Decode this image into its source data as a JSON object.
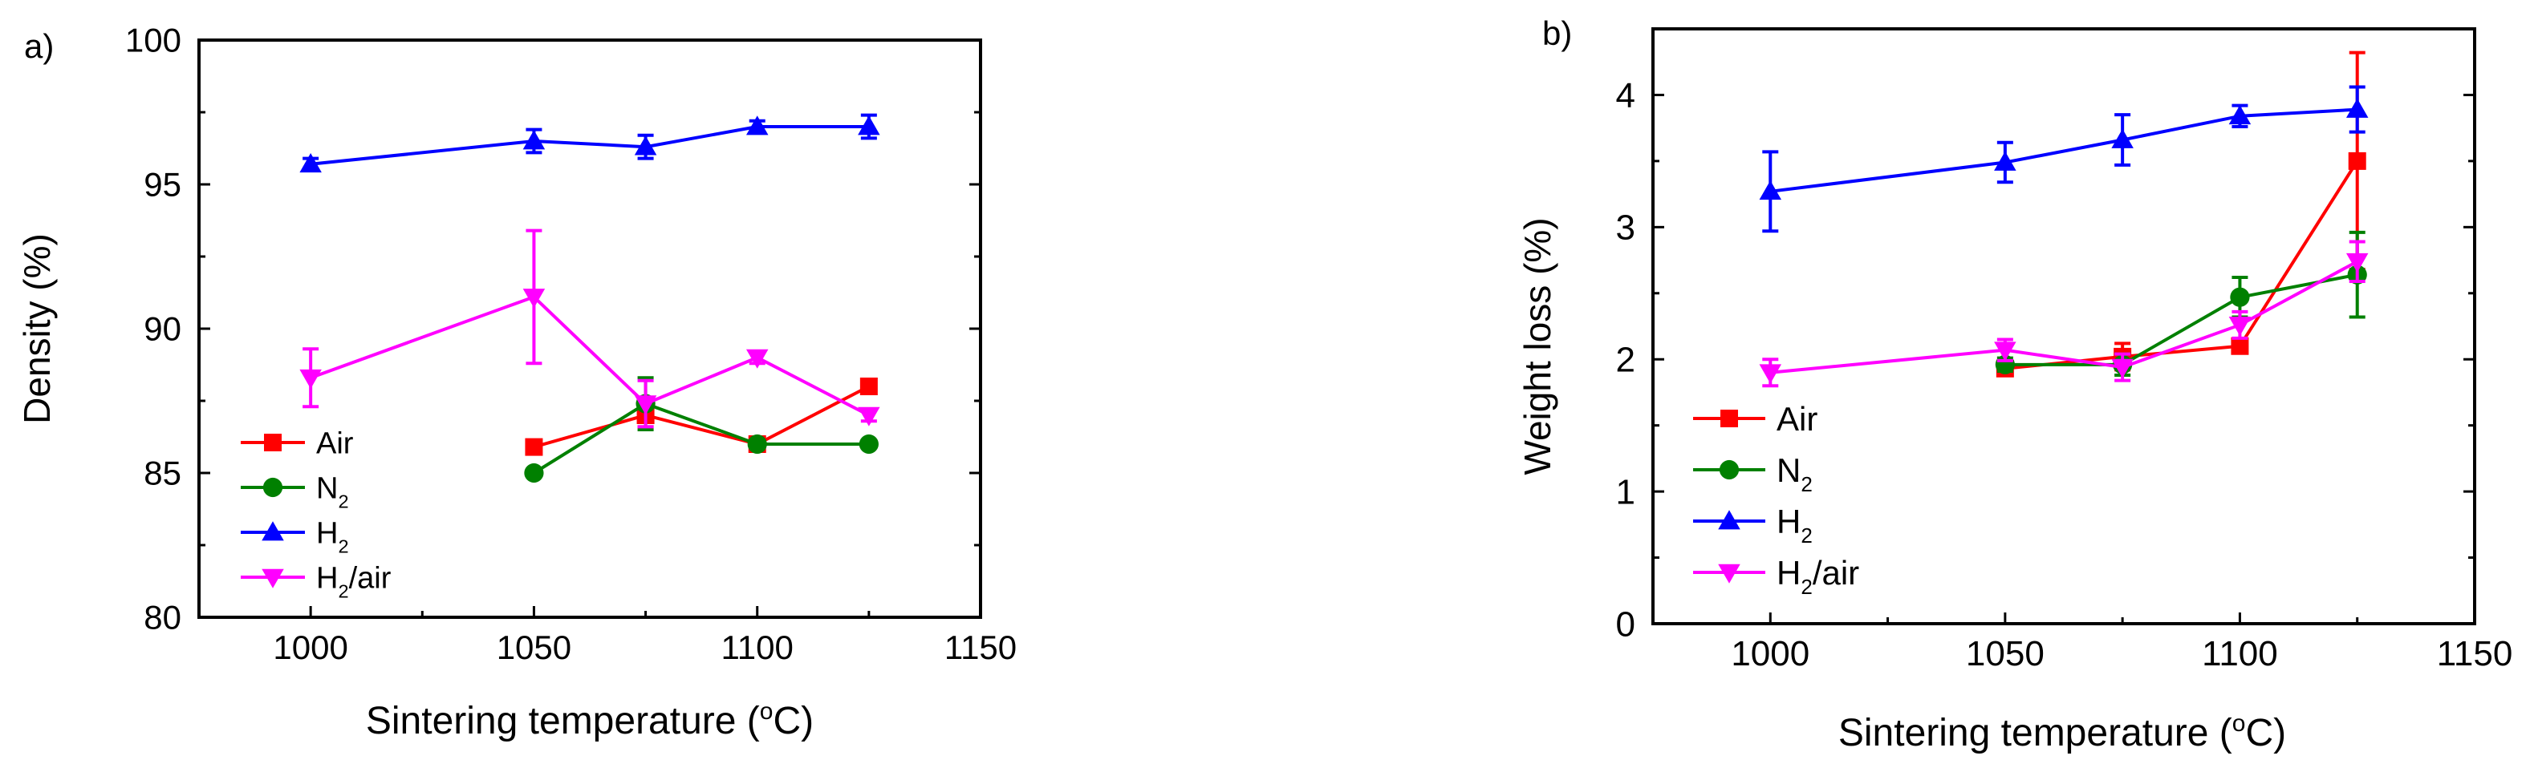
{
  "chart_data": [
    {
      "type": "line",
      "panel_label": "a)",
      "xlabel": "Sintering temperature (°C)",
      "xlabel_parts": [
        "Sintering temperature (",
        "o",
        "C)"
      ],
      "ylabel": "Density (%)",
      "xlim": [
        975,
        1150
      ],
      "ylim": [
        80,
        100
      ],
      "xticks": [
        1000,
        1050,
        1100,
        1150
      ],
      "yticks": [
        80,
        85,
        90,
        95,
        100
      ],
      "legend_position": "lower-left",
      "series": [
        {
          "name": "Air",
          "legend_base": "Air",
          "legend_sub": "",
          "legend_rest": "",
          "color": "#ff0000",
          "marker": "square",
          "x": [
            1050,
            1075,
            1100,
            1125
          ],
          "y": [
            85.9,
            87.0,
            86.0,
            88.0
          ],
          "err": [
            0,
            0.4,
            0,
            0
          ]
        },
        {
          "name": "N2",
          "legend_base": "N",
          "legend_sub": "2",
          "legend_rest": "",
          "color": "#008000",
          "marker": "circle",
          "x": [
            1050,
            1075,
            1100,
            1125
          ],
          "y": [
            85.0,
            87.4,
            86.0,
            86.0
          ],
          "err": [
            0,
            0.9,
            0,
            0
          ]
        },
        {
          "name": "H2",
          "legend_base": "H",
          "legend_sub": "2",
          "legend_rest": "",
          "color": "#0000ff",
          "marker": "triangle-up",
          "x": [
            1000,
            1050,
            1075,
            1100,
            1125
          ],
          "y": [
            95.7,
            96.5,
            96.3,
            97.0,
            97.0
          ],
          "err": [
            0.2,
            0.4,
            0.4,
            0.2,
            0.4
          ]
        },
        {
          "name": "H2/air",
          "legend_base": "H",
          "legend_sub": "2",
          "legend_rest": "/air",
          "color": "#ff00ff",
          "marker": "triangle-down",
          "x": [
            1000,
            1050,
            1075,
            1100,
            1125
          ],
          "y": [
            88.3,
            91.1,
            87.4,
            89.0,
            87.0
          ],
          "err": [
            1.0,
            2.3,
            0.8,
            0.2,
            0.2
          ]
        }
      ]
    },
    {
      "type": "line",
      "panel_label": "b)",
      "xlabel": "Sintering temperature (°C)",
      "xlabel_parts": [
        "Sintering temperature (",
        "o",
        "C)"
      ],
      "ylabel": "Weight loss (%)",
      "xlim": [
        975,
        1150
      ],
      "ylim": [
        0,
        4.5
      ],
      "xticks": [
        1000,
        1050,
        1100,
        1150
      ],
      "yticks": [
        0,
        1,
        2,
        3,
        4
      ],
      "legend_position": "lower-left",
      "series": [
        {
          "name": "Air",
          "legend_base": "Air",
          "legend_sub": "",
          "legend_rest": "",
          "color": "#ff0000",
          "marker": "square",
          "x": [
            1050,
            1075,
            1100,
            1125
          ],
          "y": [
            1.93,
            2.02,
            2.1,
            3.5
          ],
          "err": [
            0.05,
            0.1,
            0.05,
            0.82
          ]
        },
        {
          "name": "N2",
          "legend_base": "N",
          "legend_sub": "2",
          "legend_rest": "",
          "color": "#008000",
          "marker": "circle",
          "x": [
            1050,
            1075,
            1100,
            1125
          ],
          "y": [
            1.96,
            1.96,
            2.47,
            2.64
          ],
          "err": [
            0.05,
            0.08,
            0.15,
            0.32
          ]
        },
        {
          "name": "H2",
          "legend_base": "H",
          "legend_sub": "2",
          "legend_rest": "",
          "color": "#0000ff",
          "marker": "triangle-up",
          "x": [
            1000,
            1050,
            1075,
            1100,
            1125
          ],
          "y": [
            3.27,
            3.49,
            3.66,
            3.84,
            3.89
          ],
          "err": [
            0.3,
            0.15,
            0.19,
            0.08,
            0.17
          ]
        },
        {
          "name": "H2/air",
          "legend_base": "H",
          "legend_sub": "2",
          "legend_rest": "/air",
          "color": "#ff00ff",
          "marker": "triangle-down",
          "x": [
            1000,
            1050,
            1075,
            1100,
            1125
          ],
          "y": [
            1.9,
            2.07,
            1.94,
            2.26,
            2.74
          ],
          "err": [
            0.1,
            0.08,
            0.1,
            0.1,
            0.15
          ]
        }
      ]
    }
  ]
}
